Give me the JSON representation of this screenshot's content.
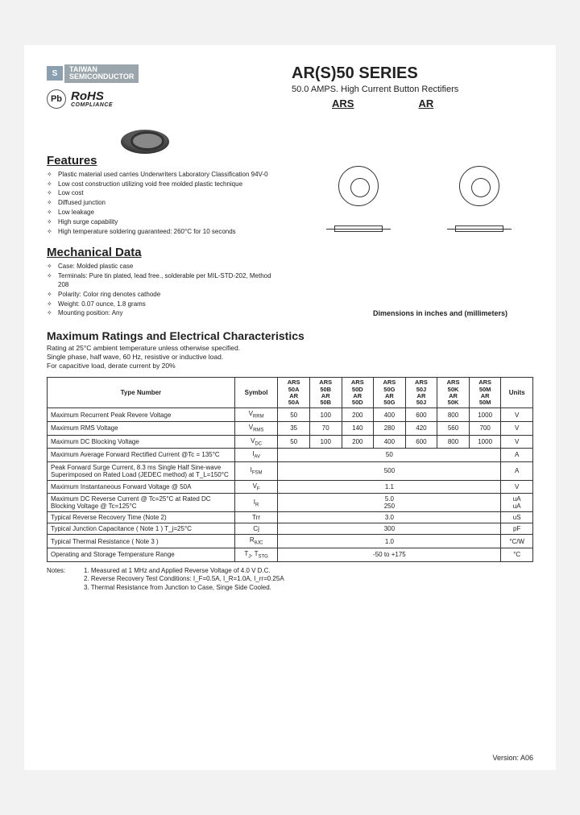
{
  "logo": {
    "mark": "S",
    "name_line1": "TAIWAN",
    "name_line2": "SEMICONDUCTOR",
    "pb_label": "Pb",
    "rohs": "RoHS",
    "rohs_sub": "COMPLIANCE"
  },
  "title": {
    "main": "AR(S)50 SERIES",
    "sub": "50.0 AMPS. High Current Button Rectifiers",
    "model1": "ARS",
    "model2": "AR"
  },
  "dim_note": "Dimensions in inches and (millimeters)",
  "features": {
    "heading": "Features",
    "items": [
      "Plastic material used carries Underwriters Laboratory Classification 94V-0",
      "Low cost construction utilizing void free molded plastic technique",
      "Low cost",
      "Diffused junction",
      "Low leakage",
      "High surge capability",
      "High temperature soldering guaranteed: 260°C for 10 seconds"
    ]
  },
  "mechanical": {
    "heading": "Mechanical Data",
    "items": [
      "Case: Molded plastic case",
      "Terminals: Pure tin plated, lead free., solderable per MIL-STD-202, Method 208",
      "Polarity: Color ring denotes cathode",
      "Weight: 0.07 ounce, 1.8 grams",
      "Mounting position: Any"
    ]
  },
  "ratings": {
    "heading": "Maximum Ratings and Electrical Characteristics",
    "intro": "Rating at 25°C ambient temperature unless otherwise specified.\nSingle phase, half wave, 60 Hz, resistive or inductive load.\nFor capacitive load, derate current by 20%",
    "head_type": "Type Number",
    "head_symbol": "Symbol",
    "head_units": "Units",
    "columns": [
      {
        "top": "ARS",
        "mid": "50A",
        "bot": "AR",
        "bot2": "50A"
      },
      {
        "top": "ARS",
        "mid": "50B",
        "bot": "AR",
        "bot2": "50B"
      },
      {
        "top": "ARS",
        "mid": "50D",
        "bot": "AR",
        "bot2": "50D"
      },
      {
        "top": "ARS",
        "mid": "50G",
        "bot": "AR",
        "bot2": "50G"
      },
      {
        "top": "ARS",
        "mid": "50J",
        "bot": "AR",
        "bot2": "50J"
      },
      {
        "top": "ARS",
        "mid": "50K",
        "bot": "AR",
        "bot2": "50K"
      },
      {
        "top": "ARS",
        "mid": "50M",
        "bot": "AR",
        "bot2": "50M"
      }
    ],
    "rows": [
      {
        "param": "Maximum Recurrent Peak Revere Voltage",
        "symbol": "V_RRM",
        "vals": [
          "50",
          "100",
          "200",
          "400",
          "600",
          "800",
          "1000"
        ],
        "unit": "V"
      },
      {
        "param": "Maximum RMS Voltage",
        "symbol": "V_RMS",
        "vals": [
          "35",
          "70",
          "140",
          "280",
          "420",
          "560",
          "700"
        ],
        "unit": "V"
      },
      {
        "param": "Maximum DC Blocking Voltage",
        "symbol": "V_DC",
        "vals": [
          "50",
          "100",
          "200",
          "400",
          "600",
          "800",
          "1000"
        ],
        "unit": "V"
      },
      {
        "param": "Maximum Average Forward Rectified Current @Tc = 135°C",
        "symbol": "I_(AV)",
        "span": "50",
        "unit": "A"
      },
      {
        "param": "Peak Forward Surge Current, 8.3 ms Single Half Sine-wave Superimposed on Rated Load (JEDEC method) at T_L=150°C",
        "symbol": "I_FSM",
        "span": "500",
        "unit": "A"
      },
      {
        "param": "Maximum Instantaneous Forward Voltage @ 50A",
        "symbol": "V_F",
        "span": "1.1",
        "unit": "V"
      },
      {
        "param": "Maximum DC Reverse Current @ Tc=25°C at Rated DC Blocking Voltage @ Tc=125°C",
        "symbol": "I_R",
        "span": "5.0\n250",
        "unit": "uA\nuA"
      },
      {
        "param": "Typical Reverse Recovery Time (Note 2)",
        "symbol": "Trr",
        "span": "3.0",
        "unit": "uS"
      },
      {
        "param": "Typical Junction Capacitance ( Note 1 ) T_j=25°C",
        "symbol": "Cj",
        "span": "300",
        "unit": "pF"
      },
      {
        "param": "Typical Thermal Resistance ( Note 3 )",
        "symbol": "R_θJC",
        "span": "1.0",
        "unit": "°C/W"
      },
      {
        "param": "Operating and Storage Temperature Range",
        "symbol": "T_J, T_STG",
        "span": "-50 to +175",
        "unit": "°C"
      }
    ]
  },
  "notes": {
    "label": "Notes:",
    "items": [
      "1. Measured at 1 MHz and Applied Reverse Voltage of 4.0 V D.C.",
      "2. Reverse Recovery Test Conditions: I_F=0.5A, I_R=1.0A, I_rr=0.25A",
      "3. Thermal Resistance from Junction to Case, Singe Side Cooled."
    ]
  },
  "version": "Version: A06",
  "colors": {
    "page_bg": "#ffffff",
    "outer_bg": "#f2f2f2",
    "logo_bg": "#9aa6ac",
    "border": "#333333"
  }
}
